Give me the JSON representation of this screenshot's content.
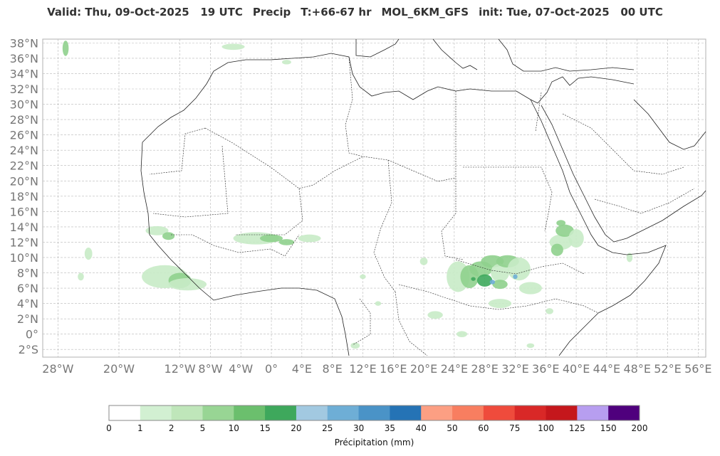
{
  "header": {
    "valid": "Valid: Thu, 09-Oct-2025   19 UTC",
    "field": "Precip",
    "lead": "T:+66-67 hr",
    "model": "MOL_6KM_GFS",
    "init": "init: Tue, 07-Oct-2025   00 UTC"
  },
  "map": {
    "region": "North Africa / Arabian Peninsula",
    "lon_range": [
      -30,
      57
    ],
    "lat_range": [
      -3,
      38.5
    ],
    "lat_ticks": [
      "38°N",
      "36°N",
      "34°N",
      "32°N",
      "30°N",
      "28°N",
      "26°N",
      "24°N",
      "22°N",
      "20°N",
      "18°N",
      "16°N",
      "14°N",
      "12°N",
      "10°N",
      "8°N",
      "6°N",
      "4°N",
      "2°N",
      "0°",
      "2°S"
    ],
    "lon_ticks": [
      "28°W",
      "20°W",
      "12°W",
      "8°W",
      "4°W",
      "0°",
      "4°E",
      "8°E",
      "12°E",
      "16°E",
      "20°E",
      "24°E",
      "28°E",
      "32°E",
      "36°E",
      "40°E",
      "44°E",
      "48°E",
      "52°E",
      "56°E"
    ],
    "gridlines": true
  },
  "colorbar": {
    "title": "Précipitation (mm)",
    "levels": [
      "0",
      "1",
      "2",
      "5",
      "10",
      "15",
      "20",
      "25",
      "30",
      "35",
      "40",
      "50",
      "60",
      "75",
      "100",
      "125",
      "150",
      "200"
    ],
    "colors": [
      "#ffffff",
      "#d2f0d2",
      "#bfe6ba",
      "#98d594",
      "#6bbf6d",
      "#3ea85c",
      "#a2c9e1",
      "#6eaed6",
      "#4a93c7",
      "#2573b5",
      "#fc9f83",
      "#f87e60",
      "#ef4b3c",
      "#d92827",
      "#c5171c",
      "#b79ef0",
      "#4f007d"
    ]
  },
  "precip_colors": {
    "light": "#c8ebc6",
    "medium": "#8fd08d",
    "heavy": "#3ea85c",
    "blue": "#6eaed6"
  }
}
